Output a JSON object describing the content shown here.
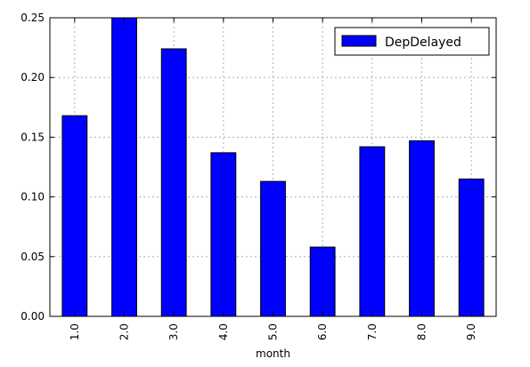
{
  "chart_data": {
    "type": "bar",
    "title": "",
    "xlabel": "month",
    "ylabel": "",
    "categories": [
      "1.0",
      "2.0",
      "3.0",
      "4.0",
      "5.0",
      "6.0",
      "7.0",
      "8.0",
      "9.0"
    ],
    "series": [
      {
        "name": "DepDelayed",
        "color": "#0000ff",
        "values": [
          0.168,
          0.25,
          0.224,
          0.137,
          0.113,
          0.058,
          0.142,
          0.147,
          0.115
        ]
      }
    ],
    "ylim": [
      0,
      0.25
    ],
    "yticks": [
      "0.00",
      "0.05",
      "0.10",
      "0.15",
      "0.20",
      "0.25"
    ],
    "grid": true,
    "legend": "top-right"
  }
}
